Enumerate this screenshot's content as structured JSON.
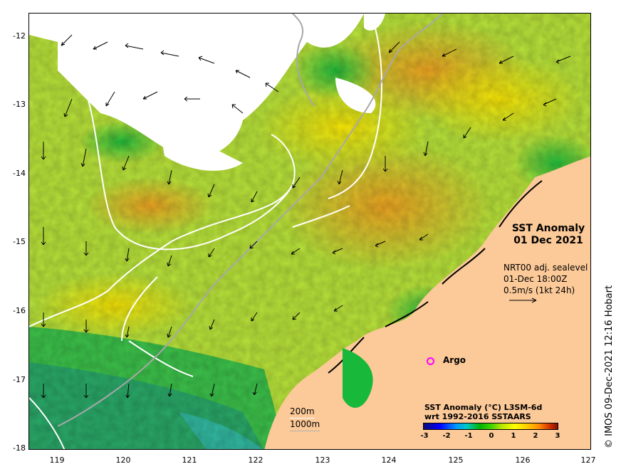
{
  "map": {
    "title_line1": "SST Anomaly",
    "title_line2": "01 Dec 2021",
    "vector_info": [
      "NRT00 adj. sealevel",
      "01-Dec 18:00Z",
      "0.5m/s (1kt 24h)"
    ],
    "argo_label": "Argo",
    "contour_legend": [
      "200m",
      "1000m"
    ],
    "colorbar_title_line1": "SST Anomaly (°C) L3SM-6d",
    "colorbar_title_line2": "wrt 1992-2016 SSTAARS",
    "colorbar_ticks": [
      "-3",
      "-2",
      "-1",
      "0",
      "1",
      "2",
      "3"
    ],
    "x_ticks": [
      "119",
      "120",
      "121",
      "122",
      "123",
      "124",
      "125",
      "126",
      "127"
    ],
    "y_ticks": [
      "-12",
      "-13",
      "-14",
      "-15",
      "-16",
      "-17",
      "-18"
    ],
    "copyright": "© IMOS 09-Dec-2021 12:16 Hobart",
    "colors": {
      "land": "#fcc998",
      "cloud": "#ffffff",
      "ocean_warm": "#f5a623",
      "ocean_neutral": "#c8e632",
      "ocean_cool": "#4cc84c"
    }
  }
}
